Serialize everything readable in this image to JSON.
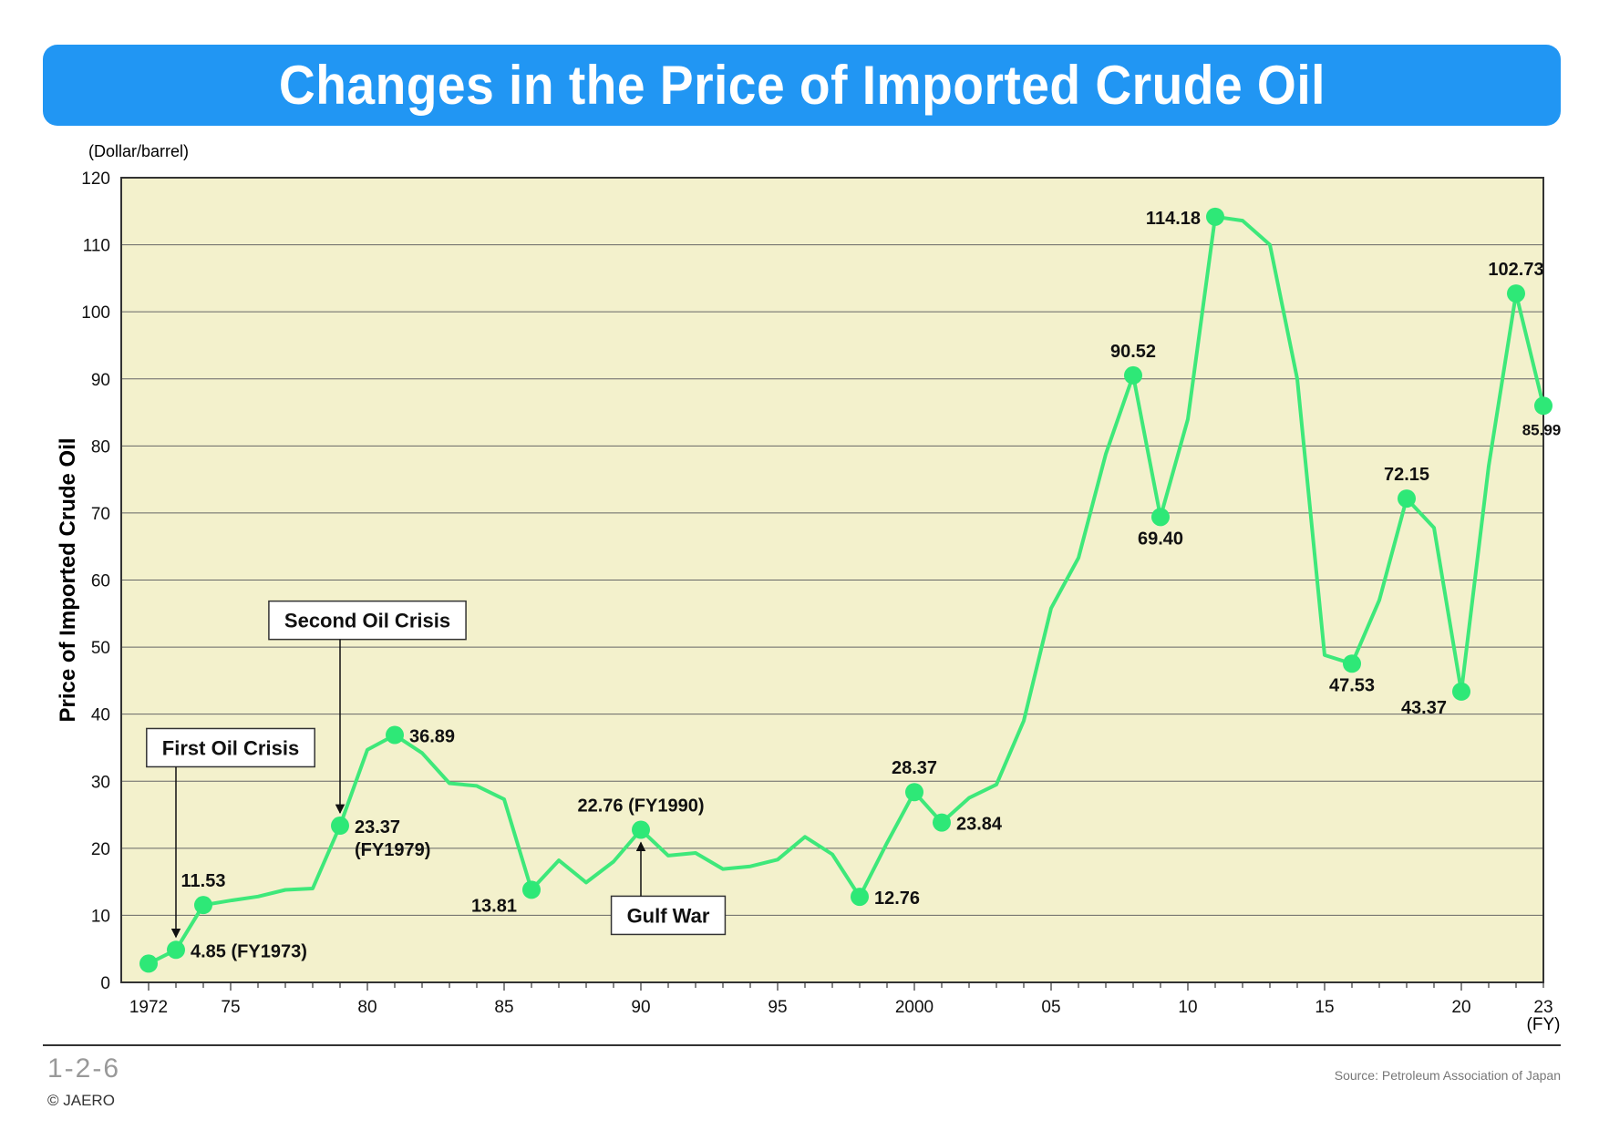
{
  "title": "Changes in the Price of Imported Crude Oil",
  "figure_number": "1-2-6",
  "copyright": "© JAERO",
  "source": "Source: Petroleum Association of Japan",
  "colors": {
    "title_bar": "#2196f3",
    "plot_bg": "#f3f1cc",
    "line": "#3ee87a",
    "marker": "#2ee877"
  },
  "chart_data": {
    "type": "line",
    "title": "Changes in the Price of Imported Crude Oil",
    "ylabel": "Price of Imported Crude Oil",
    "yunit": "(Dollar/barrel)",
    "xunit": "(FY)",
    "ylim": [
      0,
      120
    ],
    "xlim": [
      1972,
      2023
    ],
    "yticks": [
      0,
      10,
      20,
      30,
      40,
      50,
      60,
      70,
      80,
      90,
      100,
      110,
      120
    ],
    "xticks": [
      {
        "year": 1972,
        "label": "1972"
      },
      {
        "year": 1975,
        "label": "75"
      },
      {
        "year": 1980,
        "label": "80"
      },
      {
        "year": 1985,
        "label": "85"
      },
      {
        "year": 1990,
        "label": "90"
      },
      {
        "year": 1995,
        "label": "95"
      },
      {
        "year": 2000,
        "label": "2000"
      },
      {
        "year": 2005,
        "label": "05"
      },
      {
        "year": 2010,
        "label": "10"
      },
      {
        "year": 2015,
        "label": "15"
      },
      {
        "year": 2020,
        "label": "20"
      },
      {
        "year": 2023,
        "label": "23"
      }
    ],
    "grid": true,
    "series": [
      {
        "x": [
          1972,
          1973,
          1974,
          1975,
          1976,
          1977,
          1978,
          1979,
          1980,
          1981,
          1982,
          1983,
          1984,
          1985,
          1986,
          1987,
          1988,
          1989,
          1990,
          1991,
          1992,
          1993,
          1994,
          1995,
          1996,
          1997,
          1998,
          1999,
          2000,
          2001,
          2002,
          2003,
          2004,
          2005,
          2006,
          2007,
          2008,
          2009,
          2010,
          2011,
          2012,
          2013,
          2014,
          2015,
          2016,
          2017,
          2018,
          2019,
          2020,
          2021,
          2022,
          2023
        ],
        "y": [
          2.8,
          4.85,
          11.53,
          12.2,
          12.8,
          13.8,
          14.0,
          23.37,
          34.7,
          36.89,
          34.2,
          29.7,
          29.3,
          27.3,
          13.81,
          18.2,
          14.9,
          18.0,
          22.76,
          18.9,
          19.3,
          16.9,
          17.3,
          18.3,
          21.7,
          19.1,
          12.76,
          20.8,
          28.37,
          23.84,
          27.5,
          29.5,
          39.0,
          55.8,
          63.3,
          78.8,
          90.52,
          69.4,
          84.0,
          114.18,
          113.6,
          110.0,
          90.0,
          48.8,
          47.53,
          57.0,
          72.15,
          67.8,
          43.37,
          77.0,
          102.73,
          85.99
        ]
      }
    ],
    "highlighted_points": [
      {
        "x": 1972,
        "y": 2.8
      },
      {
        "x": 1973,
        "y": 4.85
      },
      {
        "x": 1974,
        "y": 11.53
      },
      {
        "x": 1979,
        "y": 23.37
      },
      {
        "x": 1981,
        "y": 36.89
      },
      {
        "x": 1986,
        "y": 13.81
      },
      {
        "x": 1990,
        "y": 22.76
      },
      {
        "x": 1998,
        "y": 12.76
      },
      {
        "x": 2000,
        "y": 28.37
      },
      {
        "x": 2001,
        "y": 23.84
      },
      {
        "x": 2008,
        "y": 90.52
      },
      {
        "x": 2009,
        "y": 69.4
      },
      {
        "x": 2011,
        "y": 114.18
      },
      {
        "x": 2016,
        "y": 47.53
      },
      {
        "x": 2018,
        "y": 72.15
      },
      {
        "x": 2020,
        "y": 43.37
      },
      {
        "x": 2022,
        "y": 102.73
      },
      {
        "x": 2023,
        "y": 85.99
      }
    ],
    "data_labels": [
      {
        "x": 1973,
        "y": 4.85,
        "text": "4.85 (FY1973)",
        "anchor": "right"
      },
      {
        "x": 1974,
        "y": 11.53,
        "text": "11.53",
        "anchor": "above"
      },
      {
        "x": 1979,
        "y": 23.37,
        "text": "23.37",
        "text2": "(FY1979)",
        "anchor": "right"
      },
      {
        "x": 1981,
        "y": 36.89,
        "text": "36.89",
        "anchor": "right"
      },
      {
        "x": 1986,
        "y": 13.81,
        "text": "13.81",
        "anchor": "left-below"
      },
      {
        "x": 1990,
        "y": 22.76,
        "text": "22.76 (FY1990)",
        "anchor": "above"
      },
      {
        "x": 1998,
        "y": 12.76,
        "text": "12.76",
        "anchor": "right"
      },
      {
        "x": 2000,
        "y": 28.37,
        "text": "28.37",
        "anchor": "above"
      },
      {
        "x": 2001,
        "y": 23.84,
        "text": "23.84",
        "anchor": "right"
      },
      {
        "x": 2008,
        "y": 90.52,
        "text": "90.52",
        "anchor": "above"
      },
      {
        "x": 2009,
        "y": 69.4,
        "text": "69.40",
        "anchor": "below"
      },
      {
        "x": 2011,
        "y": 114.18,
        "text": "114.18",
        "anchor": "left"
      },
      {
        "x": 2016,
        "y": 47.53,
        "text": "47.53",
        "anchor": "below"
      },
      {
        "x": 2018,
        "y": 72.15,
        "text": "72.15",
        "anchor": "above"
      },
      {
        "x": 2020,
        "y": 43.37,
        "text": "43.37",
        "anchor": "left-below"
      },
      {
        "x": 2022,
        "y": 102.73,
        "text": "102.73",
        "anchor": "above"
      },
      {
        "x": 2023,
        "y": 85.99,
        "text": "85.99",
        "anchor": "below-small"
      }
    ],
    "annotations": [
      {
        "text": "First Oil Crisis",
        "target_x": 1973,
        "target_y": 4.85,
        "box_year": 1975,
        "box_value": 35,
        "direction": "down"
      },
      {
        "text": "Second Oil Crisis",
        "target_x": 1979,
        "target_y": 23.37,
        "box_year": 1980,
        "box_value": 54,
        "direction": "down"
      },
      {
        "text": "Gulf War",
        "target_x": 1990,
        "target_y": 22.76,
        "box_year": 1991,
        "box_value": 10,
        "direction": "up"
      }
    ]
  }
}
